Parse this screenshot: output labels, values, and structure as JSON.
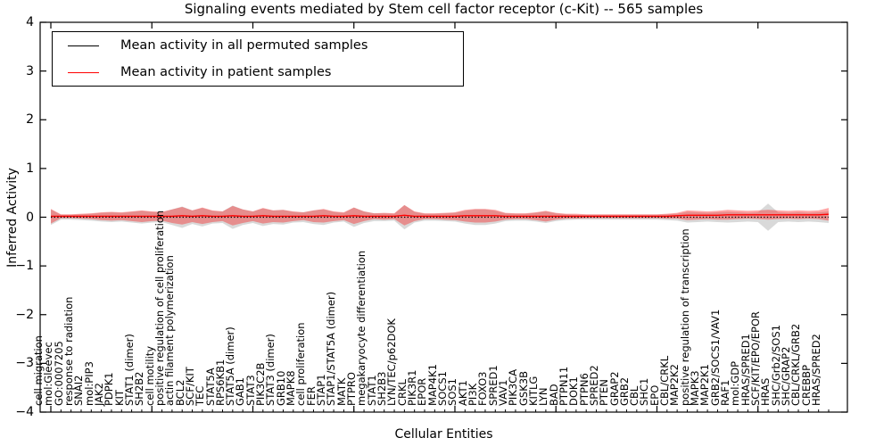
{
  "figure": {
    "title": "Signaling events mediated by Stem cell factor receptor (c-Kit) -- 565 samples",
    "xlabel": "Cellular Entities",
    "ylabel": "Inferred Activity"
  },
  "legend": {
    "items": [
      {
        "label": "Mean activity in all permuted samples",
        "color": "#000000"
      },
      {
        "label": "Mean activity in patient samples",
        "color": "#ff0000"
      }
    ]
  },
  "chart_data": {
    "type": "line",
    "title": "Signaling events mediated by Stem cell factor receptor (c-Kit) -- 565 samples",
    "xlabel": "Cellular Entities",
    "ylabel": "Inferred Activity",
    "ylim": [
      -4,
      4
    ],
    "yticks": [
      4,
      3,
      2,
      1,
      0,
      -1,
      -2,
      -3,
      -4
    ],
    "grid": false,
    "legend_position": "upper left",
    "categories": [
      "cell migration",
      "mol:Gleevec",
      "GO:0007205",
      "response to radiation",
      "SNAI2",
      "mol:PIP3",
      "JAK2",
      "PDPK1",
      "KIT",
      "STAT1 (dimer)",
      "SH2B2",
      "cell motility",
      "positive regulation of cell proliferation",
      "actin filament polymerization",
      "BCL2",
      "SCF/KIT",
      "TEC",
      "STAT5A",
      "RPS6KB1",
      "STAT5A (dimer)",
      "GAB1",
      "STAT3",
      "PIK3C2B",
      "STAT3 (dimer)",
      "GRB10",
      "MAPK8",
      "cell proliferation",
      "FER",
      "STAP1",
      "STAP1/STAT5A (dimer)",
      "MATK",
      "PTPRO",
      "megakaryocyte differentiation",
      "STAT1",
      "SH2B3",
      "LYN/TEC/p62DOK",
      "CRKL",
      "PIK3R1",
      "EPOR",
      "MAP4K1",
      "SOCS1",
      "SOS1",
      "AKT1",
      "PI3K",
      "FOXO3",
      "SPRED1",
      "VAV1",
      "PIK3CA",
      "GSK3B",
      "KITLG",
      "LYN",
      "BAD",
      "PTPN11",
      "DOK1",
      "PTPN6",
      "SPRED2",
      "PTEN",
      "GRAP2",
      "GRB2",
      "CBL",
      "SHC1",
      "EPO",
      "CBL/CRKL",
      "MAP2K2",
      "positive regulation of transcription",
      "MAPK3",
      "MAP2K1",
      "GRB2/SOCS1/VAV1",
      "RAF1",
      "mol:GDP",
      "HRAS/SPRED1",
      "SCF/KIT/EPO/EPOR",
      "HRAS",
      "SHC/Grb2/SOS1",
      "SHC/GRAP2",
      "CBL/CRKL/GRB2",
      "CREBBP",
      "HRAS/SPRED2"
    ],
    "series": [
      {
        "name": "Mean activity in all permuted samples",
        "color": "#000000",
        "style": "dotted",
        "values": [
          0,
          0,
          0,
          0,
          0,
          0,
          0,
          0,
          0,
          0,
          0,
          0,
          0,
          0,
          0,
          0,
          0,
          0,
          0,
          0,
          0,
          0,
          0,
          0,
          0,
          0,
          0,
          0,
          0,
          0,
          0,
          0,
          0,
          0,
          0,
          0,
          0,
          0,
          0,
          0,
          0,
          0,
          0,
          0,
          0,
          0,
          0,
          0,
          0,
          0,
          0,
          0,
          0,
          0,
          0,
          0,
          0,
          0,
          0,
          0,
          0,
          0,
          0,
          0,
          0,
          0,
          0,
          0,
          0,
          0,
          0,
          0,
          0,
          0,
          0,
          0,
          0,
          0
        ]
      },
      {
        "name": "Mean activity in patient samples",
        "color": "#ff0000",
        "style": "solid",
        "values": [
          0.02,
          0.02,
          0.02,
          0.02,
          0.02,
          0.02,
          0.02,
          0.02,
          0.02,
          0.02,
          0.02,
          0.02,
          0.02,
          0.03,
          0.02,
          0.03,
          0.02,
          0.02,
          0.03,
          0.02,
          0.02,
          0.03,
          0.02,
          0.02,
          0.02,
          0.02,
          0.02,
          0.03,
          0.02,
          0.02,
          0.03,
          0.02,
          0.02,
          0.02,
          0.02,
          0.04,
          0.02,
          0.02,
          0.02,
          0.02,
          0.02,
          0.03,
          0.03,
          0.03,
          0.03,
          0.02,
          0.02,
          0.02,
          0.02,
          0.02,
          0.02,
          0.02,
          0.02,
          0.02,
          0.02,
          0.02,
          0.02,
          0.02,
          0.02,
          0.02,
          0.02,
          0.02,
          0.03,
          0.04,
          0.04,
          0.04,
          0.04,
          0.05,
          0.05,
          0.05,
          0.05,
          0.05,
          0.05,
          0.05,
          0.05,
          0.05,
          0.05,
          0.06
        ]
      }
    ],
    "bands": [
      {
        "name": "permuted-samples-std-band",
        "color": "#787878",
        "opacity": 0.28,
        "center": "permuted",
        "half_widths": [
          0.16,
          0.05,
          0.05,
          0.06,
          0.07,
          0.09,
          0.1,
          0.09,
          0.11,
          0.13,
          0.11,
          0.1,
          0.16,
          0.22,
          0.14,
          0.19,
          0.13,
          0.12,
          0.24,
          0.16,
          0.12,
          0.18,
          0.14,
          0.15,
          0.11,
          0.1,
          0.14,
          0.16,
          0.11,
          0.09,
          0.2,
          0.12,
          0.08,
          0.08,
          0.07,
          0.25,
          0.11,
          0.07,
          0.07,
          0.08,
          0.09,
          0.13,
          0.16,
          0.16,
          0.13,
          0.08,
          0.07,
          0.07,
          0.09,
          0.12,
          0.08,
          0.06,
          0.05,
          0.05,
          0.05,
          0.05,
          0.05,
          0.05,
          0.05,
          0.05,
          0.05,
          0.06,
          0.07,
          0.11,
          0.1,
          0.09,
          0.1,
          0.11,
          0.1,
          0.09,
          0.1,
          0.28,
          0.1,
          0.09,
          0.1,
          0.09,
          0.1,
          0.12
        ]
      },
      {
        "name": "patient-samples-std-band",
        "color": "#ff0000",
        "opacity": 0.35,
        "center": "patient",
        "half_widths": [
          0.15,
          0.04,
          0.04,
          0.05,
          0.06,
          0.08,
          0.09,
          0.08,
          0.1,
          0.12,
          0.1,
          0.09,
          0.14,
          0.18,
          0.12,
          0.17,
          0.12,
          0.1,
          0.2,
          0.14,
          0.1,
          0.16,
          0.12,
          0.13,
          0.1,
          0.08,
          0.12,
          0.14,
          0.1,
          0.08,
          0.17,
          0.1,
          0.06,
          0.07,
          0.06,
          0.21,
          0.1,
          0.06,
          0.06,
          0.07,
          0.08,
          0.12,
          0.14,
          0.14,
          0.12,
          0.07,
          0.06,
          0.06,
          0.08,
          0.11,
          0.07,
          0.05,
          0.05,
          0.04,
          0.04,
          0.04,
          0.04,
          0.04,
          0.04,
          0.04,
          0.04,
          0.05,
          0.06,
          0.1,
          0.09,
          0.08,
          0.09,
          0.1,
          0.09,
          0.08,
          0.09,
          0.1,
          0.09,
          0.08,
          0.09,
          0.08,
          0.09,
          0.13
        ]
      }
    ]
  }
}
